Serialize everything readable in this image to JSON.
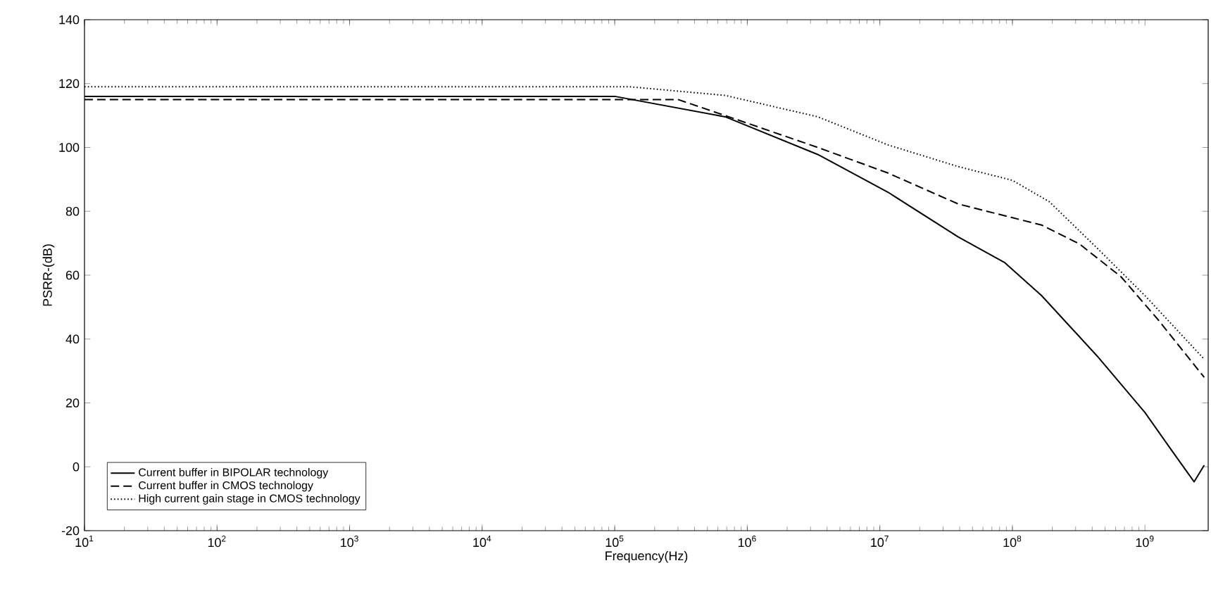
{
  "chart_data": {
    "type": "line",
    "xlabel": "Frequency(Hz)",
    "ylabel": "PSRR-(dB)",
    "log": "x",
    "xlim": [
      10,
      3000000000
    ],
    "ylim": [
      -20,
      140
    ],
    "xticks": [
      {
        "value": 10,
        "label": "10$^{1}$"
      },
      {
        "value": 100,
        "label": "10$^{2}$"
      },
      {
        "value": 1000,
        "label": "10$^{3}$"
      },
      {
        "value": 10000,
        "label": "10$^{4}$"
      },
      {
        "value": 100000,
        "label": "10$^{5}$"
      },
      {
        "value": 1000000,
        "label": "10$^{6}$"
      },
      {
        "value": 10000000,
        "label": "10$^{7}$"
      },
      {
        "value": 100000000,
        "label": "10$^{8}$"
      },
      {
        "value": 1000000000,
        "label": "10$^{9}$"
      }
    ],
    "yticks": [
      -20,
      0,
      20,
      40,
      60,
      80,
      100,
      120,
      140
    ],
    "grid": false,
    "legend": "bottom left",
    "marker": "none",
    "series": [
      {
        "name": "Current buffer in BIPOLAR technology",
        "color": "#000000",
        "line_style": "solid",
        "x": [
          10,
          100000,
          680000,
          3400000,
          11500000,
          39000000,
          87000000,
          166000000,
          440000000,
          1000000000,
          1600000000,
          2350000000,
          2800000000
        ],
        "values": [
          116,
          116,
          109.6,
          97.8,
          86,
          72,
          64,
          53.6,
          34.5,
          17,
          5,
          -4.7,
          0.5
        ]
      },
      {
        "name": "Current buffer in CMOS technology",
        "color": "#000000",
        "line_style": "dashed",
        "x": [
          10,
          300000,
          680000,
          3400000,
          11500000,
          39000000,
          100000000,
          166000000,
          320000000,
          660000000,
          1260000000,
          2800000000
        ],
        "values": [
          115,
          115,
          110,
          100,
          92,
          82.3,
          78,
          75.7,
          69.8,
          59.5,
          46,
          28
        ]
      },
      {
        "name": "High current gain stage in CMOS technology",
        "color": "#000000",
        "line_style": "dotted",
        "x": [
          10,
          130000,
          680000,
          3400000,
          11500000,
          39000000,
          100000000,
          190000000,
          440000000,
          1000000000,
          2800000000
        ],
        "values": [
          119,
          119,
          116.3,
          109.6,
          100.8,
          94,
          89.7,
          83,
          68.3,
          53.6,
          33.7
        ]
      }
    ]
  }
}
